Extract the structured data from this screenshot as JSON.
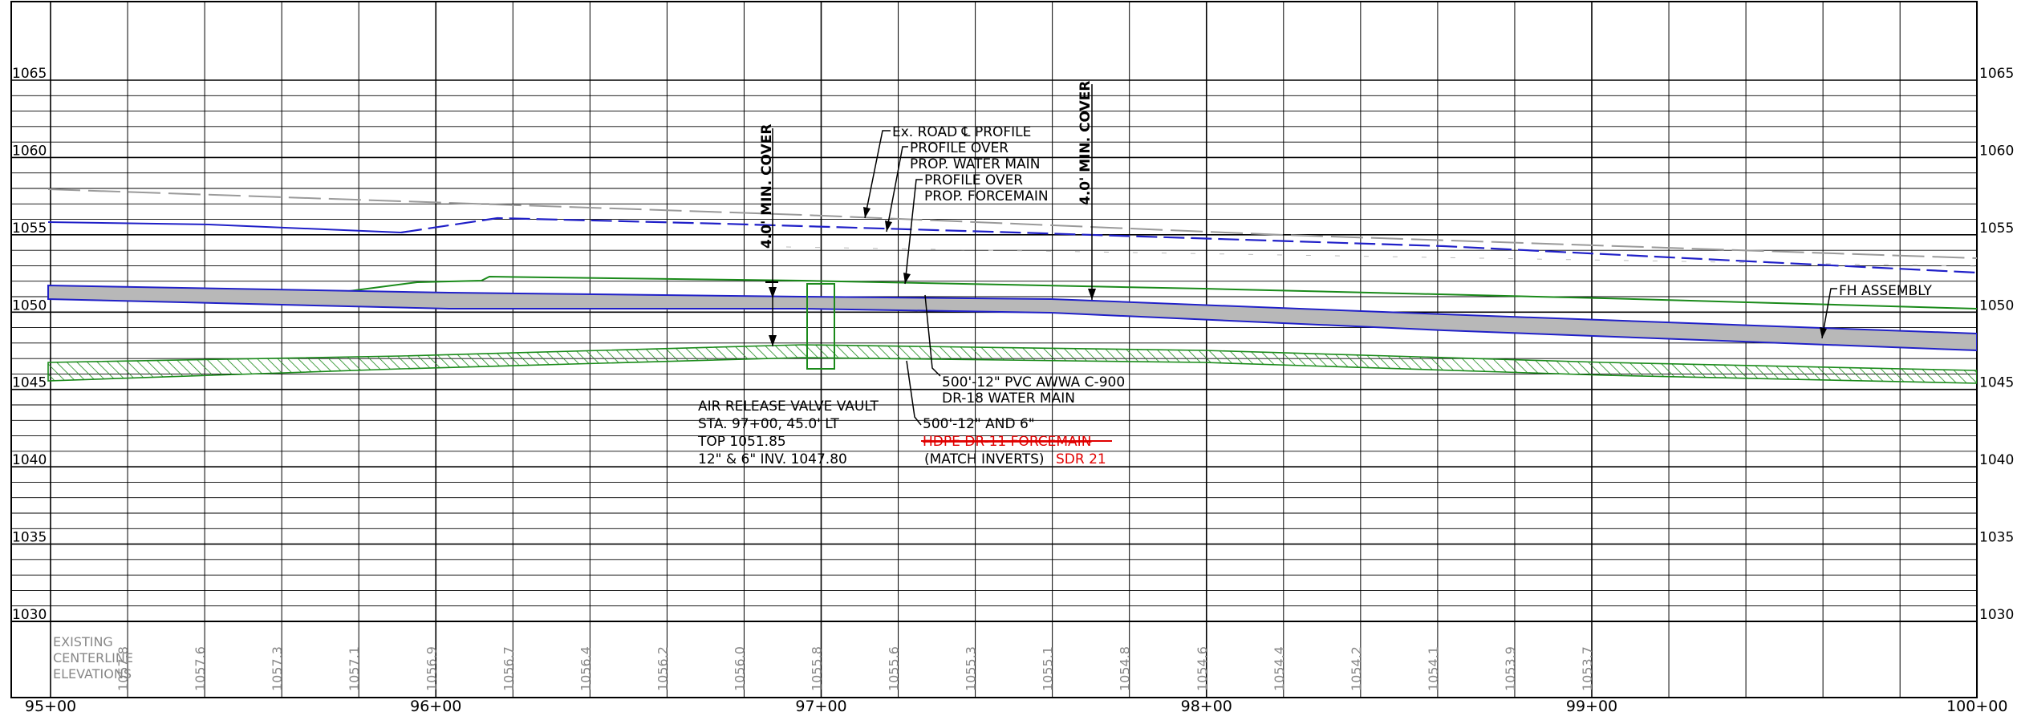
{
  "elevation_labels": [
    "1065",
    "1060",
    "1055",
    "1050",
    "1045",
    "1040",
    "1035",
    "1030"
  ],
  "station_labels": [
    "95+00",
    "96+00",
    "97+00",
    "98+00",
    "99+00",
    "100+00"
  ],
  "existing_centerline_label": [
    "EXISTING",
    "CENTERLINE",
    "ELEVATIONS"
  ],
  "centerline_elevations": [
    "1057.8",
    "1057.6",
    "1057.3",
    "1057.1",
    "1056.9",
    "1056.7",
    "1056.4",
    "1056.2",
    "1056.0",
    "1055.8",
    "1055.6",
    "1055.3",
    "1055.1",
    "1054.8",
    "1054.6",
    "1054.4",
    "1054.2",
    "1054.1",
    "1053.9",
    "1053.7"
  ],
  "cover_notes": {
    "left": "4.0' MIN. COVER",
    "right": "4.0' MIN. COVER"
  },
  "callouts": {
    "road_profile": "Ex. ROAD ℄ PROFILE",
    "profile_water_1": "PROFILE OVER",
    "profile_water_2": "PROP. WATER MAIN",
    "profile_force_1": "PROFILE OVER",
    "profile_force_2": "PROP. FORCEMAIN",
    "fh_assembly": "FH ASSEMBLY",
    "pvc_1": "500'-12\" PVC AWWA C-900",
    "pvc_2": "DR-18 WATER MAIN",
    "hdpe_1": "500'-12\" AND 6\"",
    "hdpe_2": "HDPE DR-11 FORCEMAIN",
    "hdpe_3": "(MATCH INVERTS)",
    "sdr": "SDR 21",
    "arv_1": "AIR RELEASE VALVE VAULT",
    "arv_2": "STA. 97+00, 45.0' LT",
    "arv_3": "TOP 1051.85",
    "arv_4": "12\" & 6\" INV. 1047.80"
  },
  "colors": {
    "water_main": "#2020c8",
    "forcemain": "#1a8a1a",
    "pipe_fill": "#b8b8b8",
    "road_profile": "#9a9a9a",
    "revision": "#e00000"
  }
}
